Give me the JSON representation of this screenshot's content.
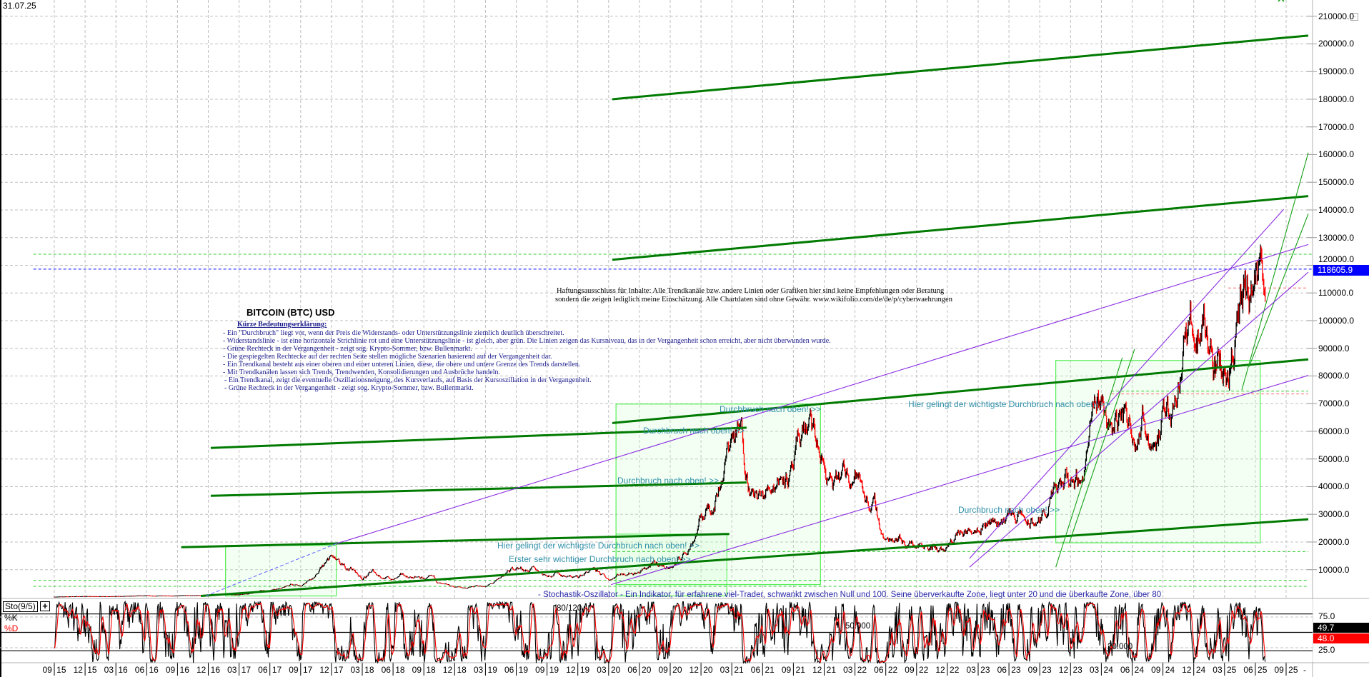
{
  "header": {
    "date": "31.07.25"
  },
  "title": "BITCOIN (BTC) USD",
  "legend": {
    "heading": "Kürze Bedeutungserklärung:",
    "lines": [
      "- Ein \"Durchbruch\" liegt vor, wenn der Preis die Widerstands- oder Unterstützungslinie ziemlich deutlich überschreitet.",
      "- Widerstandslinie - ist eine horizontale Strichlinie rot und eine Unterstützungslinie - ist gleich, aber grün. Die Linien zeigen das Kursniveau, das in der Vergangenheit schon erreicht, aber nicht überwunden wurde.",
      "- Grüne Rechteck in der Vergangenheit - zeigt sog. Krypto-Sommer, bzw. Bullenmarkt.",
      "- Die gespiegelten Rechtecke auf der rechten Seite stellen mögliche Szenarien basierend auf der Vergangenheit dar.",
      "- Ein Trendkanal besteht aus einer oberen und einer unteren Linien, diese, die obere und untere Grenze des Trends darstellen.",
      "- Mit Trendkanälen lassen sich Trends, Trendwenden, Konsolidierungen und Ausbrüche handeln.",
      "- Ein Trendkanal, zeigt die eventuelle Oszillationsneigung, des Kursverlaufs, auf Basis der Kursoszillation in der Vergangenheit.",
      "- Grüne Rechteck in der Vergangenheit - zeigt sog. Krypto-Sommer, bzw. Bullenmarkt."
    ]
  },
  "disclaimer": [
    "Haftungsausschluss für Inhalte: Alle Trendkanäle bzw. andere Linien oder Grafiken hier sind keine Empfehlungen oder Beratung",
    "sondern die zeigen lediglich meine Einschätzung. Alle Chartdaten sind ohne Gewähr. www.wikifolio.com/de/de/p/cyberwaehrungen"
  ],
  "annotations": {
    "breakout_1": "Durchbruch nach oben! >>",
    "breakout_2": "Durchbruch nach oben! >>",
    "breakout_3": "Durchbruch nach oben! >>",
    "breakout_4": "Durchbruch nach oben! >>",
    "key_breakout_1": "Hier gelingt der wichtigste Durchbruch nach oben! >>",
    "key_breakout_2": "Hier gelingt der wichtigste Durchbruch nach oben! >>",
    "first_breakout": "Erster sehr wichtiger Durchbruch nach oben! >>"
  },
  "indicator": {
    "label": "Sto(9/5)",
    "plus": "+",
    "k_label": "%K",
    "d_label": "%D",
    "k_value": "49.7",
    "d_value": "48.0",
    "note": "- Stochastik-Oszillator - Ein Indikator, für erfahrene viel-Trader, schwankt zwischen Null und 100. Seine überverkaufte Zone, liegt unter 20 und die überkaufte Zone, über 80",
    "level_texts": [
      "80/120",
      "50.000",
      "20.000"
    ],
    "axis_labels": [
      "75.0",
      "25.0"
    ],
    "k_color": "#000000",
    "d_color": "#ff0000"
  },
  "price_axis": {
    "labels": [
      "210000.0",
      "200000.0",
      "190000.0",
      "180000.0",
      "170000.0",
      "160000.0",
      "150000.0",
      "140000.0",
      "130000.0",
      "120000.0",
      "110000.0",
      "100000.0",
      "90000.0",
      "80000.0",
      "70000.0",
      "60000.0",
      "50000.0",
      "40000.0",
      "30000.0",
      "20000.0",
      "10000.0"
    ],
    "current_price": "118605.9",
    "current_color": "#0000ff"
  },
  "x_axis": {
    "labels": [
      "09 15",
      "12 15",
      "03 16",
      "06 16",
      "09 16",
      "12 16",
      "03 17",
      "06 17",
      "09 17",
      "12 17",
      "03 18",
      "06 18",
      "09 18",
      "12 18",
      "03 19",
      "06 19",
      "09 19",
      "12 19",
      "03 20",
      "06 20",
      "09 20",
      "12 20",
      "03 21",
      "06 21",
      "09 21",
      "12 21",
      "03 22",
      "06 22",
      "09 22",
      "12 22",
      "03 23",
      "06 23",
      "09 23",
      "12 23",
      "03 24",
      "06 24",
      "09 24",
      "12 24",
      "03 25",
      "06 25",
      "09 25"
    ],
    "trailing": "-"
  },
  "chart_data": {
    "type": "line",
    "title": "BITCOIN (BTC) USD",
    "scale": "linear",
    "grid": true,
    "ylim": [
      0,
      210000
    ],
    "xlim": [
      "2015-09",
      "2025-11"
    ],
    "series": [
      {
        "frequency": "monthly",
        "start": "2015-09",
        "close": [
          236,
          314,
          377,
          430,
          368,
          437,
          416,
          448,
          531,
          673,
          624,
          575,
          609,
          701,
          742,
          964,
          970,
          1190,
          1080,
          1350,
          2300,
          2480,
          2875,
          4700,
          4340,
          6470,
          9950,
          14150,
          10220,
          10400,
          6970,
          9240,
          7500,
          6400,
          7730,
          7030,
          6630,
          6370,
          4020,
          3740,
          3460,
          3850,
          4100,
          5320,
          8570,
          10820,
          10090,
          9630,
          8290,
          9200,
          7570,
          7190,
          9350,
          8600,
          6440,
          8660,
          9460,
          9140,
          11350,
          11680,
          10780,
          13800,
          19700,
          29000,
          33100,
          45200,
          58800,
          57700,
          37300,
          35000,
          41600,
          47100,
          43800,
          61300,
          57000,
          46300,
          38500,
          43200,
          45500,
          37700,
          31800,
          19900,
          23300,
          20000,
          19400,
          20500,
          17200,
          16500,
          23100,
          23100,
          28500,
          29300,
          27200,
          30500,
          29200,
          26000,
          27000,
          34500,
          37700,
          42300,
          42600,
          61200,
          71300,
          60600,
          67500,
          62700,
          64600,
          59000,
          63300,
          70200,
          96400,
          93400,
          102400,
          84400,
          82500,
          94200,
          104600,
          107100,
          118605.9
        ],
        "up_color": "#000000",
        "down_color": "#ff0000"
      }
    ],
    "trendlines": [
      {
        "kind": "channel",
        "color": "#007a00",
        "points": [
          [
            2020.2,
            180000
          ],
          [
            2025.85,
            203000
          ]
        ]
      },
      {
        "kind": "channel",
        "color": "#007a00",
        "points": [
          [
            2020.2,
            122000
          ],
          [
            2025.85,
            145000
          ]
        ]
      },
      {
        "kind": "channel",
        "color": "#007a00",
        "points": [
          [
            2020.2,
            63000
          ],
          [
            2025.85,
            86000
          ]
        ]
      },
      {
        "kind": "channel",
        "color": "#007a00",
        "points": [
          [
            2016.94,
            54000
          ],
          [
            2021.29,
            61300
          ]
        ]
      },
      {
        "kind": "channel",
        "color": "#007a00",
        "points": [
          [
            2016.94,
            36700
          ],
          [
            2021.29,
            41500
          ]
        ]
      },
      {
        "kind": "channel",
        "color": "#007a00",
        "points": [
          [
            2016.7,
            18100
          ],
          [
            2021.15,
            22900
          ]
        ]
      },
      {
        "kind": "channel",
        "color": "#007a00",
        "points": [
          [
            2016.86,
            500
          ],
          [
            2025.85,
            28200
          ]
        ]
      },
      {
        "kind": "steep",
        "color": "#16a016",
        "points": [
          [
            2025.31,
            74900
          ],
          [
            2025.85,
            160700
          ]
        ]
      },
      {
        "kind": "steep",
        "color": "#16a016",
        "points": [
          [
            2025.37,
            83400
          ],
          [
            2025.85,
            138600
          ]
        ]
      },
      {
        "kind": "steep",
        "color": "#16a016",
        "points": [
          [
            2023.8,
            10900
          ],
          [
            2024.34,
            86600
          ]
        ]
      },
      {
        "kind": "steep",
        "color": "#16a016",
        "points": [
          [
            2023.91,
            19700
          ],
          [
            2024.44,
            89700
          ]
        ]
      },
      {
        "kind": "trend",
        "color": "#8a2be2",
        "points": [
          [
            2017.96,
            19400
          ],
          [
            2025.85,
            127500
          ]
        ]
      },
      {
        "kind": "trend",
        "color": "#8a2be2",
        "points": [
          [
            2020.19,
            4600
          ],
          [
            2025.85,
            80200
          ]
        ]
      },
      {
        "kind": "trend",
        "color": "#8a2be2",
        "points": [
          [
            2023.1,
            14050
          ],
          [
            2025.65,
            140200
          ]
        ]
      },
      {
        "kind": "trend",
        "color": "#8a2be2",
        "points": [
          [
            2023.1,
            10900
          ],
          [
            2025.85,
            117500
          ]
        ]
      },
      {
        "kind": "extension",
        "color": "#6a6aff",
        "points": [
          [
            2016.9,
            500
          ],
          [
            2017.96,
            19400
          ]
        ]
      }
    ],
    "boxes": [
      {
        "from": 2017.06,
        "to": 2017.96,
        "low": 500,
        "high": 18750
      },
      {
        "from": 2020.23,
        "to": 2021.13,
        "low": 500,
        "high": 22850
      },
      {
        "from": 2020.23,
        "to": 2021.89,
        "low": 4600,
        "high": 69850
      },
      {
        "from": 2023.8,
        "to": 2025.46,
        "low": 19700,
        "high": 85600
      }
    ],
    "hlines": [
      {
        "value": 118605.9,
        "color": "#0000ff",
        "from": 2015.5,
        "to": 2025.95
      },
      {
        "value": 124000,
        "color": "#33cc33",
        "from": 2015.5,
        "to": 2025.95
      },
      {
        "value": 111800,
        "color": "#ff6666",
        "from": 2025.2,
        "to": 2025.85
      },
      {
        "value": 73500,
        "color": "#ff6666",
        "from": 2024.25,
        "to": 2025.85
      },
      {
        "value": 74500,
        "color": "#33cc33",
        "from": 2024.25,
        "to": 2025.85
      },
      {
        "value": 16550,
        "color": "#33cc33",
        "from": 2020.2,
        "to": 2025.85
      },
      {
        "value": 6150,
        "color": "#33cc33",
        "from": 2015.5,
        "to": 2025.85
      },
      {
        "value": 4000,
        "color": "#33cc33",
        "from": 2015.5,
        "to": 2025.85
      }
    ]
  }
}
